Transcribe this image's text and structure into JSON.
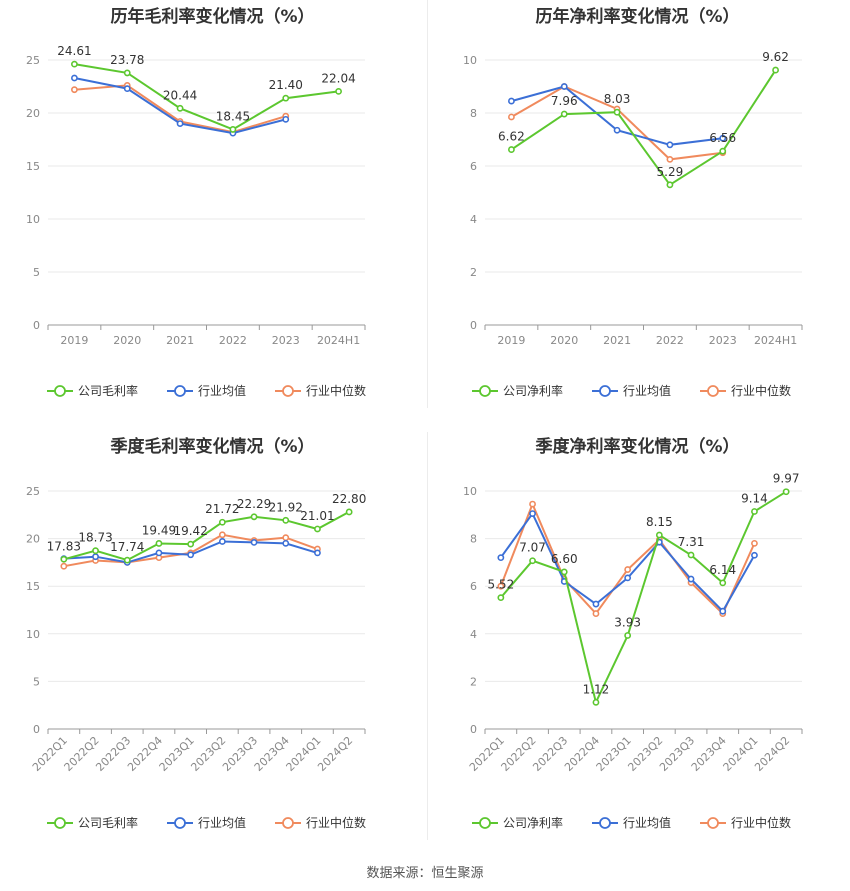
{
  "source": "数据来源：恒生聚源",
  "chart_data": [
    {
      "type": "line",
      "title": "历年毛利率变化情况（%）",
      "categories": [
        "2019",
        "2020",
        "2021",
        "2022",
        "2023",
        "2024H1"
      ],
      "ylim": [
        0,
        25
      ],
      "yticks": [
        0,
        5,
        10,
        15,
        20,
        25
      ],
      "series": [
        {
          "name": "公司毛利率",
          "color": "#5cc72f",
          "values": [
            24.61,
            23.78,
            20.44,
            18.45,
            21.4,
            22.04
          ],
          "labels": [
            "24.61",
            "23.78",
            "20.44",
            "18.45",
            "21.40",
            "22.04"
          ]
        },
        {
          "name": "行业均值",
          "color": "#3b6fd6",
          "values": [
            23.3,
            22.3,
            19.0,
            18.1,
            19.4,
            null
          ]
        },
        {
          "name": "行业中位数",
          "color": "#f08a5d",
          "values": [
            22.2,
            22.6,
            19.2,
            18.2,
            19.7,
            null
          ]
        }
      ]
    },
    {
      "type": "line",
      "title": "历年净利率变化情况（%）",
      "categories": [
        "2019",
        "2020",
        "2021",
        "2022",
        "2023",
        "2024H1"
      ],
      "ylim": [
        0,
        10
      ],
      "yticks": [
        0,
        2,
        4,
        6,
        8,
        10
      ],
      "series": [
        {
          "name": "公司净利率",
          "color": "#5cc72f",
          "values": [
            6.62,
            7.96,
            8.03,
            5.29,
            6.56,
            9.62
          ],
          "labels": [
            "6.62",
            "7.96",
            "8.03",
            "5.29",
            "6.56",
            "9.62"
          ]
        },
        {
          "name": "行业均值",
          "color": "#3b6fd6",
          "values": [
            8.45,
            9.0,
            7.35,
            6.8,
            7.05,
            null
          ]
        },
        {
          "name": "行业中位数",
          "color": "#f08a5d",
          "values": [
            7.85,
            9.0,
            8.15,
            6.25,
            6.5,
            null
          ]
        }
      ]
    },
    {
      "type": "line",
      "title": "季度毛利率变化情况（%）",
      "categories": [
        "2022Q1",
        "2022Q2",
        "2022Q3",
        "2022Q4",
        "2023Q1",
        "2023Q2",
        "2023Q3",
        "2023Q4",
        "2024Q1",
        "2024Q2"
      ],
      "rotate_ticks": true,
      "ylim": [
        0,
        25
      ],
      "yticks": [
        0,
        5,
        10,
        15,
        20,
        25
      ],
      "series": [
        {
          "name": "公司毛利率",
          "color": "#5cc72f",
          "values": [
            17.83,
            18.73,
            17.74,
            19.49,
            19.42,
            21.72,
            22.29,
            21.92,
            21.01,
            22.8
          ],
          "labels": [
            "17.83",
            "18.73",
            "17.74",
            "19.49",
            "19.42",
            "21.72",
            "22.29",
            "21.92",
            "21.01",
            "22.80"
          ]
        },
        {
          "name": "行业均值",
          "color": "#3b6fd6",
          "values": [
            17.9,
            18.1,
            17.5,
            18.5,
            18.3,
            19.7,
            19.6,
            19.5,
            18.5,
            null
          ]
        },
        {
          "name": "行业中位数",
          "color": "#f08a5d",
          "values": [
            17.1,
            17.7,
            17.5,
            18.0,
            18.5,
            20.4,
            19.8,
            20.1,
            18.9,
            null
          ]
        }
      ]
    },
    {
      "type": "line",
      "title": "季度净利率变化情况（%）",
      "categories": [
        "2022Q1",
        "2022Q2",
        "2022Q3",
        "2022Q4",
        "2023Q1",
        "2023Q2",
        "2023Q3",
        "2023Q4",
        "2024Q1",
        "2024Q2"
      ],
      "rotate_ticks": true,
      "ylim": [
        0,
        10
      ],
      "yticks": [
        0,
        2,
        4,
        6,
        8,
        10
      ],
      "series": [
        {
          "name": "公司净利率",
          "color": "#5cc72f",
          "values": [
            5.52,
            7.07,
            6.6,
            1.12,
            3.93,
            8.15,
            7.31,
            6.14,
            9.14,
            9.97
          ],
          "labels": [
            "5.52",
            "7.07",
            "6.60",
            "1.12",
            "3.93",
            "8.15",
            "7.31",
            "6.14",
            "9.14",
            "9.97"
          ]
        },
        {
          "name": "行业均值",
          "color": "#3b6fd6",
          "values": [
            7.2,
            9.05,
            6.2,
            5.25,
            6.35,
            7.85,
            6.3,
            4.95,
            7.3,
            null
          ]
        },
        {
          "name": "行业中位数",
          "color": "#f08a5d",
          "values": [
            6.0,
            9.45,
            6.3,
            4.85,
            6.7,
            7.95,
            6.15,
            4.85,
            7.8,
            null
          ]
        }
      ]
    }
  ]
}
